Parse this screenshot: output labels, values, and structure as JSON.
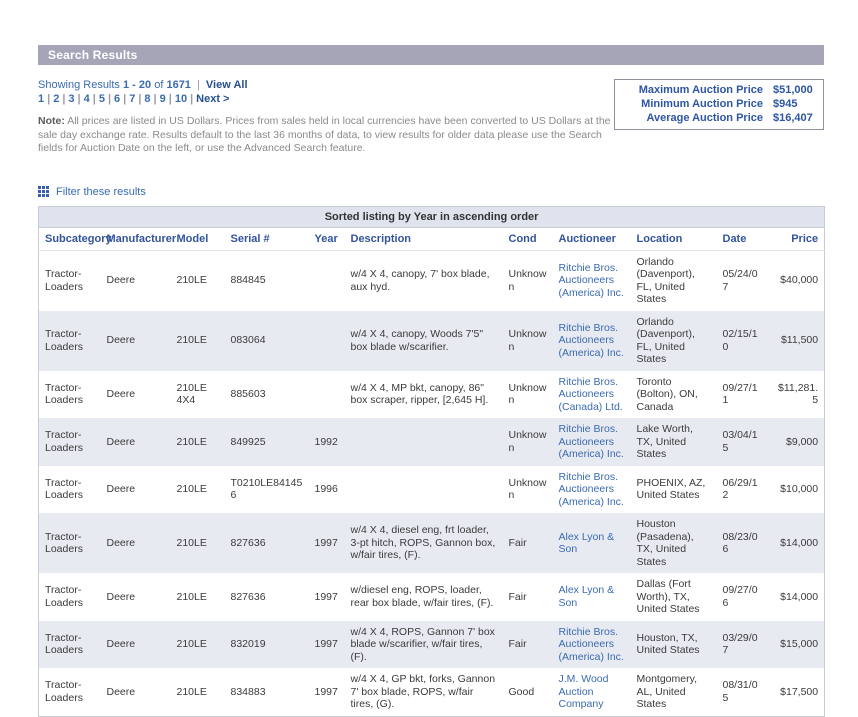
{
  "header": {
    "title": "Search Results"
  },
  "results_bar": {
    "showing_prefix": "Showing Results",
    "showing_range": "1 - 20",
    "showing_of": "of",
    "showing_total": "1671",
    "view_all": "View All",
    "pages": [
      "1",
      "2",
      "3",
      "4",
      "5",
      "6",
      "7",
      "8",
      "9",
      "10"
    ],
    "next": "Next >"
  },
  "note": {
    "label": "Note:",
    "text": "All prices are listed in US Dollars. Prices from sales held in local currencies have been converted to US Dollars at the sale day exchange rate. Results default to the last 36 months of data, to view results for older data please use the Search fields for Auction Date on the left, or use the Advanced Search feature."
  },
  "stats": {
    "rows": [
      {
        "label": "Maximum Auction Price",
        "value": "$51,000"
      },
      {
        "label": "Minimum Auction Price",
        "value": "$945"
      },
      {
        "label": "Average Auction Price",
        "value": "$16,407"
      }
    ]
  },
  "filter": {
    "label": "Filter these results"
  },
  "table": {
    "caption": "Sorted listing by Year in ascending order",
    "columns": [
      {
        "key": "subcategory",
        "label": "Subcategory"
      },
      {
        "key": "manufacturer",
        "label": "Manufacturer"
      },
      {
        "key": "model",
        "label": "Model"
      },
      {
        "key": "serial",
        "label": "Serial #"
      },
      {
        "key": "year",
        "label": "Year"
      },
      {
        "key": "description",
        "label": "Description"
      },
      {
        "key": "cond",
        "label": "Cond"
      },
      {
        "key": "auctioneer",
        "label": "Auctioneer"
      },
      {
        "key": "location",
        "label": "Location"
      },
      {
        "key": "date",
        "label": "Date"
      },
      {
        "key": "price",
        "label": "Price"
      }
    ],
    "rows": [
      {
        "subcategory": "Tractor-Loaders",
        "manufacturer": "Deere",
        "model": "210LE",
        "serial": "884845",
        "year": "",
        "description": "w/4 X 4, canopy, 7' box blade, aux hyd.",
        "cond": "Unknown",
        "auctioneer": "Ritchie Bros. Auctioneers (America) Inc.",
        "location": "Orlando (Davenport), FL, United States",
        "date": "05/24/07",
        "price": "$40,000"
      },
      {
        "subcategory": "Tractor-Loaders",
        "manufacturer": "Deere",
        "model": "210LE",
        "serial": "083064",
        "year": "",
        "description": "w/4 X 4, canopy, Woods 7'5\" box blade w/scarifier.",
        "cond": "Unknown",
        "auctioneer": "Ritchie Bros. Auctioneers (America) Inc.",
        "location": "Orlando (Davenport), FL, United States",
        "date": "02/15/10",
        "price": "$11,500"
      },
      {
        "subcategory": "Tractor-Loaders",
        "manufacturer": "Deere",
        "model": "210LE 4X4",
        "serial": "885603",
        "year": "",
        "description": "w/4 X 4, MP bkt, canopy, 86\" box scraper, ripper, [2,645 H].",
        "cond": "Unknown",
        "auctioneer": "Ritchie Bros. Auctioneers (Canada) Ltd.",
        "location": "Toronto (Bolton), ON, Canada",
        "date": "09/27/11",
        "price": "$11,281.5"
      },
      {
        "subcategory": "Tractor-Loaders",
        "manufacturer": "Deere",
        "model": "210LE",
        "serial": "849925",
        "year": "1992",
        "description": "",
        "cond": "Unknown",
        "auctioneer": "Ritchie Bros. Auctioneers (America) Inc.",
        "location": "Lake Worth, TX, United States",
        "date": "03/04/15",
        "price": "$9,000"
      },
      {
        "subcategory": "Tractor-Loaders",
        "manufacturer": "Deere",
        "model": "210LE",
        "serial": "T0210LE841456",
        "year": "1996",
        "description": "",
        "cond": "Unknown",
        "auctioneer": "Ritchie Bros. Auctioneers (America) Inc.",
        "location": "PHOENIX, AZ, United States",
        "date": "06/29/12",
        "price": "$10,000"
      },
      {
        "subcategory": "Tractor-Loaders",
        "manufacturer": "Deere",
        "model": "210LE",
        "serial": "827636",
        "year": "1997",
        "description": "w/4 X 4, diesel eng, frt loader, 3-pt hitch, ROPS, Gannon box, w/fair tires, (F).",
        "cond": "Fair",
        "auctioneer": "Alex Lyon & Son",
        "location": "Houston (Pasadena), TX, United States",
        "date": "08/23/06",
        "price": "$14,000"
      },
      {
        "subcategory": "Tractor-Loaders",
        "manufacturer": "Deere",
        "model": "210LE",
        "serial": "827636",
        "year": "1997",
        "description": "w/diesel eng, ROPS, loader, rear box blade, w/fair tires, (F).",
        "cond": "Fair",
        "auctioneer": "Alex Lyon & Son",
        "location": "Dallas (Fort Worth), TX, United States",
        "date": "09/27/06",
        "price": "$14,000"
      },
      {
        "subcategory": "Tractor-Loaders",
        "manufacturer": "Deere",
        "model": "210LE",
        "serial": "832019",
        "year": "1997",
        "description": "w/4 X 4, ROPS, Gannon 7' box blade w/scarifier, w/fair tires, (F).",
        "cond": "Fair",
        "auctioneer": "Ritchie Bros. Auctioneers (America) Inc.",
        "location": "Houston, TX, United States",
        "date": "03/29/07",
        "price": "$15,000"
      },
      {
        "subcategory": "Tractor-Loaders",
        "manufacturer": "Deere",
        "model": "210LE",
        "serial": "834883",
        "year": "1997",
        "description": "w/4 X 4, GP bkt, forks, Gannon 7' box blade, ROPS, w/fair tires, (G).",
        "cond": "Good",
        "auctioneer": "J.M. Wood Auction Company",
        "location": "Montgomery, AL, United States",
        "date": "08/31/05",
        "price": "$17,500"
      }
    ]
  },
  "colors": {
    "title_bar_bg": "#a6a5b8",
    "link_blue": "#3a6bb0",
    "link_dark": "#27508f",
    "row_alt_bg": "#e8eaf1",
    "band_bg": "#dfe3ed",
    "stats_text": "#2d55a5",
    "note_text": "#8a8a8a",
    "header_text": "#33549b"
  }
}
